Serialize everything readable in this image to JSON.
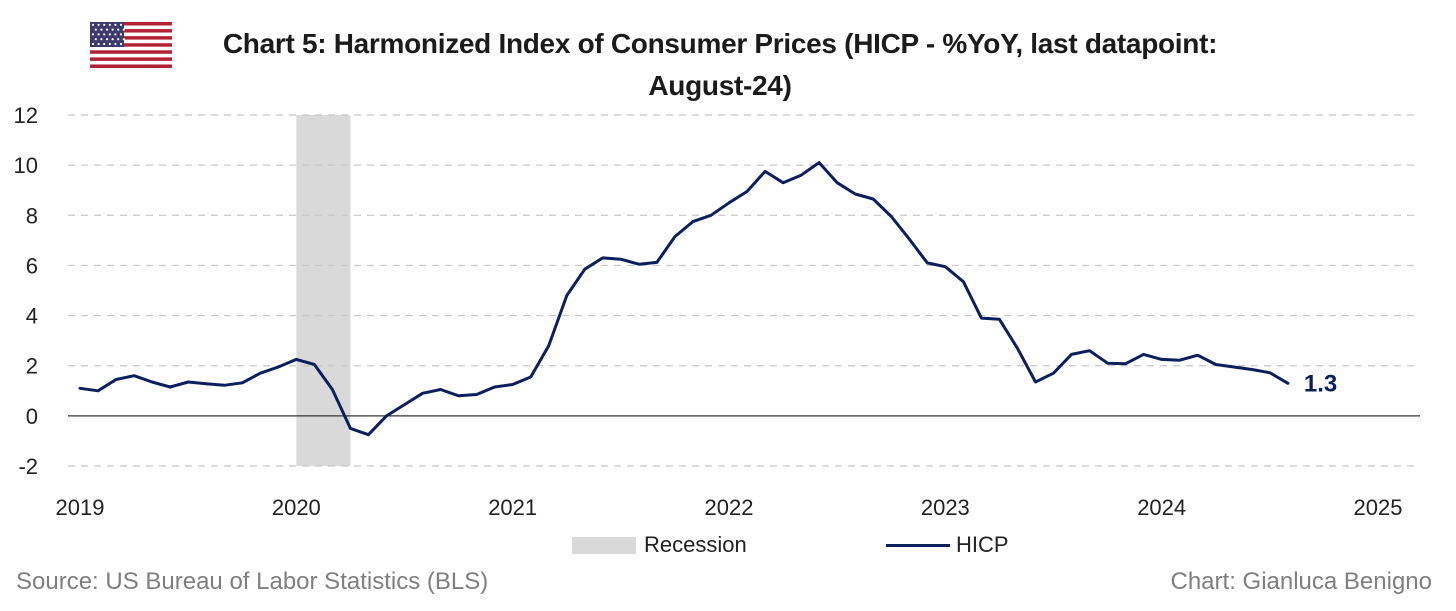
{
  "header": {
    "flag_icon": "us-flag-icon",
    "title_line1": "Chart 5: Harmonized Index of Consumer Prices (HICP - %YoY, last datapoint:",
    "title_line2": "August-24)"
  },
  "chart_data": {
    "type": "line",
    "title": "Chart 5: Harmonized Index of Consumer Prices (HICP - %YoY, last datapoint: August-24)",
    "xlabel": "",
    "ylabel": "",
    "ylim": [
      -2,
      12
    ],
    "yticks": [
      -2,
      0,
      2,
      4,
      6,
      8,
      10,
      12
    ],
    "xlim": [
      "2019-01",
      "2025-01"
    ],
    "xticks": [
      "2019",
      "2020",
      "2021",
      "2022",
      "2023",
      "2024",
      "2025"
    ],
    "grid": "horizontal dashed",
    "legend_placement": "bottom-center",
    "recession": {
      "name": "Recession",
      "start": "2020-01",
      "end": "2020-04",
      "color": "#d9d9d9"
    },
    "series": [
      {
        "name": "HICP",
        "color": "#0b1f5c",
        "x": [
          "2019-01",
          "2019-02",
          "2019-03",
          "2019-04",
          "2019-05",
          "2019-06",
          "2019-07",
          "2019-08",
          "2019-09",
          "2019-10",
          "2019-11",
          "2019-12",
          "2020-01",
          "2020-02",
          "2020-03",
          "2020-04",
          "2020-05",
          "2020-06",
          "2020-07",
          "2020-08",
          "2020-09",
          "2020-10",
          "2020-11",
          "2020-12",
          "2021-01",
          "2021-02",
          "2021-03",
          "2021-04",
          "2021-05",
          "2021-06",
          "2021-07",
          "2021-08",
          "2021-09",
          "2021-10",
          "2021-11",
          "2021-12",
          "2022-01",
          "2022-02",
          "2022-03",
          "2022-04",
          "2022-05",
          "2022-06",
          "2022-07",
          "2022-08",
          "2022-09",
          "2022-10",
          "2022-11",
          "2022-12",
          "2023-01",
          "2023-02",
          "2023-03",
          "2023-04",
          "2023-05",
          "2023-06",
          "2023-07",
          "2023-08",
          "2023-09",
          "2023-10",
          "2023-11",
          "2023-12",
          "2024-01",
          "2024-02",
          "2024-03",
          "2024-04",
          "2024-05",
          "2024-06",
          "2024-07",
          "2024-08"
        ],
        "values": [
          1.1,
          1.0,
          1.45,
          1.6,
          1.35,
          1.15,
          1.35,
          1.28,
          1.22,
          1.32,
          1.7,
          1.95,
          2.25,
          2.05,
          1.05,
          -0.5,
          -0.75,
          0.0,
          0.45,
          0.9,
          1.05,
          0.8,
          0.85,
          1.15,
          1.25,
          1.55,
          2.8,
          4.8,
          5.85,
          6.3,
          6.25,
          6.05,
          6.12,
          7.15,
          7.75,
          8.0,
          8.5,
          8.95,
          9.75,
          9.3,
          9.6,
          10.1,
          9.3,
          8.85,
          8.65,
          7.95,
          7.05,
          6.1,
          5.95,
          5.35,
          3.9,
          3.85,
          2.7,
          1.35,
          1.7,
          2.45,
          2.6,
          2.1,
          2.08,
          2.45,
          2.25,
          2.22,
          2.42,
          2.05,
          1.95,
          1.85,
          1.72,
          1.3
        ]
      }
    ],
    "annotations": [
      {
        "label": "1.3",
        "x": "2024-08",
        "y": 1.3
      }
    ]
  },
  "legend": {
    "recession_label": "Recession",
    "hicp_label": "HICP"
  },
  "footer": {
    "source": "Source: US Bureau of Labor Statistics (BLS)",
    "credit": "Chart: Gianluca Benigno"
  }
}
